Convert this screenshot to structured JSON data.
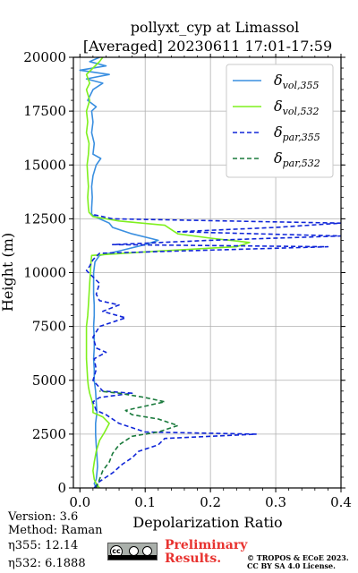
{
  "chart_data": {
    "type": "line",
    "title": "pollyxt_cyp at Limassol",
    "subtitle": "[Averaged] 20230611 17:01-17:59",
    "xlabel": "Depolarization Ratio",
    "ylabel": "Height (m)",
    "xlim": [
      -0.01,
      0.4
    ],
    "ylim": [
      0,
      20000
    ],
    "xticks": [
      "0.0",
      "0.1",
      "0.2",
      "0.3",
      "0.4"
    ],
    "yticks": [
      "0",
      "2500",
      "5000",
      "7500",
      "10000",
      "12500",
      "15000",
      "17500",
      "20000"
    ],
    "grid": true,
    "legend_position": "top-right",
    "series": [
      {
        "name": "δvol,355",
        "legend_main": "δ",
        "legend_sub": "vol,355",
        "color": "#3a8fe0",
        "style": "solid",
        "points": [
          [
            0.025,
            0
          ],
          [
            0.022,
            200
          ],
          [
            0.025,
            400
          ],
          [
            0.026,
            700
          ],
          [
            0.027,
            1000
          ],
          [
            0.026,
            1500
          ],
          [
            0.025,
            2000
          ],
          [
            0.024,
            2500
          ],
          [
            0.024,
            3000
          ],
          [
            0.026,
            3500
          ],
          [
            0.025,
            4000
          ],
          [
            0.024,
            4500
          ],
          [
            0.022,
            5000
          ],
          [
            0.022,
            5500
          ],
          [
            0.021,
            6000
          ],
          [
            0.022,
            6500
          ],
          [
            0.022,
            7000
          ],
          [
            0.021,
            7500
          ],
          [
            0.022,
            8000
          ],
          [
            0.022,
            8500
          ],
          [
            0.021,
            9000
          ],
          [
            0.021,
            9500
          ],
          [
            0.021,
            10000
          ],
          [
            0.023,
            10500
          ],
          [
            0.03,
            10800
          ],
          [
            0.06,
            11000
          ],
          [
            0.1,
            11300
          ],
          [
            0.12,
            11500
          ],
          [
            0.08,
            11800
          ],
          [
            0.05,
            12100
          ],
          [
            0.045,
            12300
          ],
          [
            0.03,
            12500
          ],
          [
            0.018,
            12700
          ],
          [
            0.018,
            13000
          ],
          [
            0.019,
            13500
          ],
          [
            0.018,
            14000
          ],
          [
            0.02,
            14500
          ],
          [
            0.025,
            15000
          ],
          [
            0.032,
            15300
          ],
          [
            0.02,
            15500
          ],
          [
            0.022,
            16000
          ],
          [
            0.018,
            16500
          ],
          [
            0.02,
            17000
          ],
          [
            0.018,
            17500
          ],
          [
            0.025,
            17700
          ],
          [
            0.012,
            18000
          ],
          [
            0.02,
            18500
          ],
          [
            0.035,
            18800
          ],
          [
            0.01,
            19000
          ],
          [
            0.045,
            19200
          ],
          [
            0.0,
            19400
          ],
          [
            0.04,
            19600
          ],
          [
            0.015,
            19800
          ],
          [
            0.03,
            20000
          ]
        ]
      },
      {
        "name": "δvol,532",
        "legend_main": "δ",
        "legend_sub": "vol,532",
        "color": "#7ff01e",
        "style": "solid",
        "points": [
          [
            0.03,
            0
          ],
          [
            0.025,
            200
          ],
          [
            0.022,
            400
          ],
          [
            0.02,
            800
          ],
          [
            0.022,
            1200
          ],
          [
            0.025,
            1700
          ],
          [
            0.03,
            2200
          ],
          [
            0.038,
            2600
          ],
          [
            0.045,
            3000
          ],
          [
            0.035,
            3300
          ],
          [
            0.02,
            3500
          ],
          [
            0.02,
            3800
          ],
          [
            0.018,
            4100
          ],
          [
            0.015,
            4400
          ],
          [
            0.013,
            4700
          ],
          [
            0.012,
            5000
          ],
          [
            0.011,
            5500
          ],
          [
            0.01,
            6000
          ],
          [
            0.01,
            6500
          ],
          [
            0.01,
            7000
          ],
          [
            0.01,
            7500
          ],
          [
            0.012,
            8000
          ],
          [
            0.013,
            8500
          ],
          [
            0.014,
            9000
          ],
          [
            0.015,
            9500
          ],
          [
            0.016,
            10000
          ],
          [
            0.017,
            10500
          ],
          [
            0.018,
            10800
          ],
          [
            0.12,
            11000
          ],
          [
            0.24,
            11200
          ],
          [
            0.26,
            11400
          ],
          [
            0.2,
            11600
          ],
          [
            0.15,
            11800
          ],
          [
            0.14,
            12000
          ],
          [
            0.13,
            12200
          ],
          [
            0.06,
            12400
          ],
          [
            0.02,
            12600
          ],
          [
            0.014,
            12800
          ],
          [
            0.013,
            13000
          ],
          [
            0.012,
            13500
          ],
          [
            0.013,
            14000
          ],
          [
            0.012,
            14500
          ],
          [
            0.011,
            15000
          ],
          [
            0.013,
            15500
          ],
          [
            0.014,
            16000
          ],
          [
            0.01,
            16500
          ],
          [
            0.012,
            17000
          ],
          [
            0.01,
            17500
          ],
          [
            0.015,
            18000
          ],
          [
            0.01,
            18500
          ],
          [
            0.015,
            18800
          ],
          [
            0.01,
            19200
          ],
          [
            0.02,
            19500
          ],
          [
            0.03,
            19800
          ],
          [
            0.035,
            20000
          ]
        ]
      },
      {
        "name": "δpar,355",
        "legend_main": "δ",
        "legend_sub": "par,355",
        "color": "#1026d8",
        "style": "dashed",
        "points": [
          [
            0.022,
            0
          ],
          [
            0.03,
            300
          ],
          [
            0.05,
            700
          ],
          [
            0.065,
            1100
          ],
          [
            0.08,
            1400
          ],
          [
            0.09,
            1700
          ],
          [
            0.12,
            2000
          ],
          [
            0.13,
            2300
          ],
          [
            0.27,
            2500
          ],
          [
            0.1,
            2600
          ],
          [
            0.06,
            3000
          ],
          [
            0.04,
            3400
          ],
          [
            0.025,
            3600
          ],
          [
            0.02,
            4000
          ],
          [
            0.03,
            4200
          ],
          [
            0.08,
            4400
          ],
          [
            0.035,
            4500
          ],
          [
            0.02,
            5000
          ],
          [
            0.025,
            5500
          ],
          [
            0.022,
            6000
          ],
          [
            0.04,
            6300
          ],
          [
            0.025,
            6500
          ],
          [
            0.02,
            7000
          ],
          [
            0.03,
            7500
          ],
          [
            0.07,
            7900
          ],
          [
            0.035,
            8200
          ],
          [
            0.06,
            8500
          ],
          [
            0.03,
            8700
          ],
          [
            0.025,
            9000
          ],
          [
            0.03,
            9500
          ],
          [
            0.02,
            9800
          ],
          [
            0.01,
            10100
          ],
          [
            0.015,
            10300
          ],
          [
            0.02,
            10600
          ],
          [
            0.03,
            10900
          ],
          [
            0.38,
            11200
          ],
          [
            0.05,
            11300
          ],
          [
            0.2,
            11500
          ],
          [
            0.4,
            11700
          ],
          [
            0.15,
            11900
          ],
          [
            0.3,
            12100
          ],
          [
            0.4,
            12300
          ],
          [
            0.05,
            12500
          ],
          [
            0.02,
            12700
          ]
        ]
      },
      {
        "name": "δpar,532",
        "legend_main": "δ",
        "legend_sub": "par,532",
        "color": "#1a7a3c",
        "style": "dashed",
        "points": [
          [
            0.025,
            0
          ],
          [
            0.03,
            400
          ],
          [
            0.035,
            800
          ],
          [
            0.045,
            1200
          ],
          [
            0.05,
            1600
          ],
          [
            0.06,
            2000
          ],
          [
            0.08,
            2400
          ],
          [
            0.12,
            2600
          ],
          [
            0.15,
            2900
          ],
          [
            0.12,
            3200
          ],
          [
            0.08,
            3400
          ],
          [
            0.07,
            3600
          ],
          [
            0.1,
            3800
          ],
          [
            0.13,
            4000
          ],
          [
            0.1,
            4200
          ],
          [
            0.06,
            4400
          ],
          [
            0.03,
            4500
          ]
        ]
      }
    ]
  },
  "footer": {
    "version": "Version: 3.6",
    "method": "Method: Raman",
    "eta355": "η355:  12.14",
    "eta532": "η532: 6.1888",
    "cc_text": "cc",
    "preliminary_line1": "Preliminary",
    "preliminary_line2": "Results.",
    "license_line1": "© TROPOS & ECoE 2023.",
    "license_line2": "CC BY SA 4.0 License."
  }
}
